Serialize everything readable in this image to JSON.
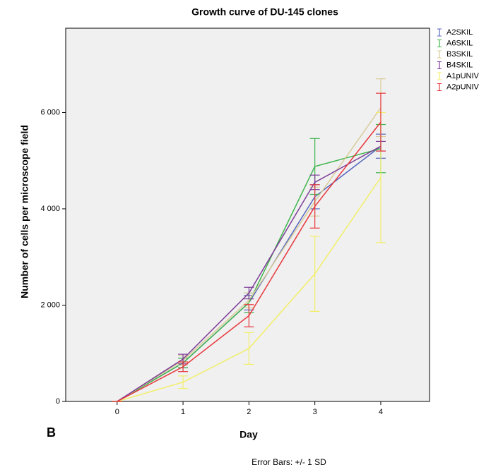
{
  "chart_data": {
    "type": "line",
    "title": "Growth curve of DU-145 clones",
    "x_label": "Day",
    "y_label": "Number of cells per microscope field",
    "panel_label": "B",
    "footnote": "Error Bars: +/- 1 SD",
    "x": [
      0,
      1,
      2,
      3,
      4
    ],
    "xlim": [
      -0.78,
      4.74
    ],
    "xticks": [
      0,
      1,
      2,
      3,
      4
    ],
    "ylim": [
      0,
      7750
    ],
    "yticks": [
      0,
      {
        "value": 2000,
        "label": "2 000"
      },
      {
        "value": 4000,
        "label": "4 000"
      },
      {
        "value": 6000,
        "label": "6 000"
      }
    ],
    "grid": false,
    "legend": "right",
    "series": [
      {
        "name": "A2SKIL",
        "color": "#5566c0",
        "values": [
          0,
          800,
          2050,
          4250,
          5300
        ],
        "errors": [
          0,
          100,
          150,
          250,
          250
        ]
      },
      {
        "name": "A6SKIL",
        "color": "#3fb54c",
        "values": [
          0,
          800,
          2050,
          4880,
          5250
        ],
        "errors": [
          0,
          100,
          200,
          580,
          500
        ]
      },
      {
        "name": "B3SKIL",
        "color": "#d9cc99",
        "values": [
          0,
          850,
          2100,
          4150,
          6100
        ],
        "errors": [
          0,
          100,
          150,
          300,
          600
        ]
      },
      {
        "name": "B4SKIL",
        "color": "#7d3c98",
        "values": [
          0,
          880,
          2250,
          4550,
          5300
        ],
        "errors": [
          0,
          100,
          120,
          150,
          100
        ]
      },
      {
        "name": "A1pUNIV",
        "color": "#f2ee6a",
        "values": [
          0,
          400,
          1100,
          2650,
          4650
        ],
        "errors": [
          0,
          130,
          330,
          780,
          1350
        ]
      },
      {
        "name": "A2pUNIV",
        "color": "#e8383d",
        "values": [
          0,
          720,
          1780,
          4050,
          5800
        ],
        "errors": [
          0,
          100,
          230,
          450,
          600
        ]
      }
    ]
  }
}
